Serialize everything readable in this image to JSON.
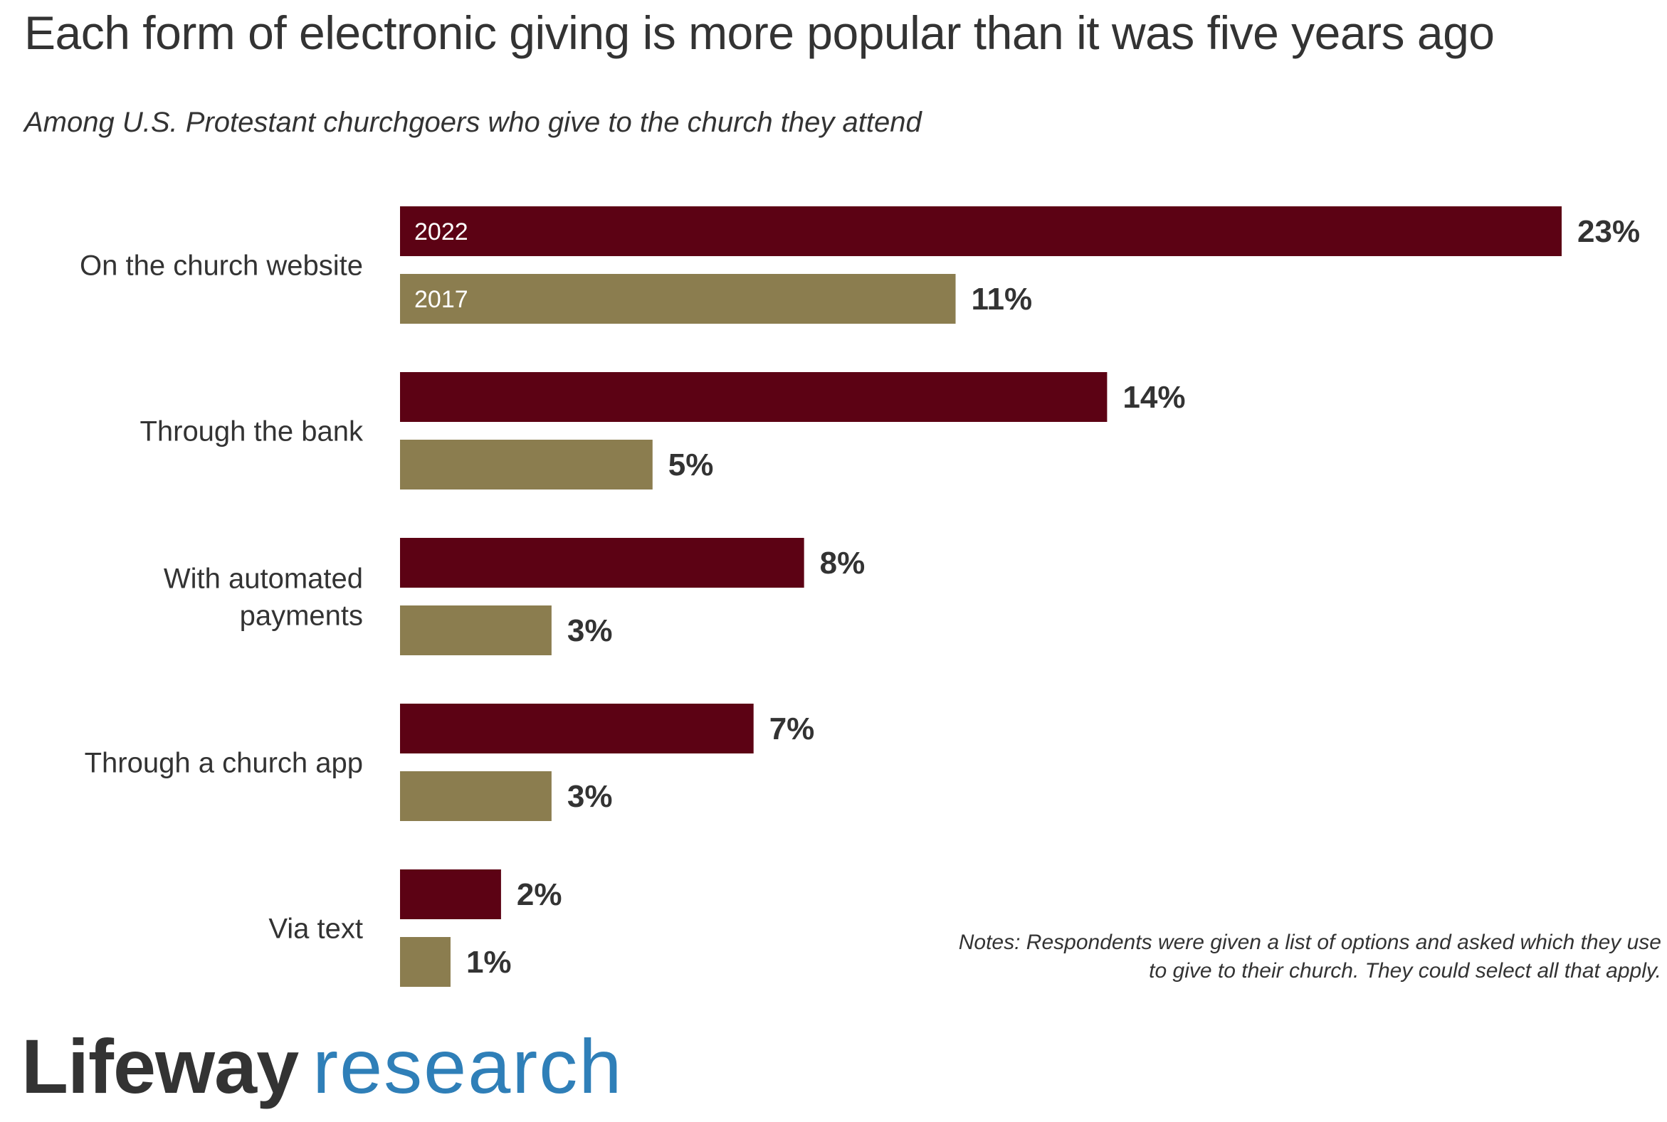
{
  "chart_data": {
    "type": "bar",
    "orientation": "horizontal",
    "title": "Each form of electronic giving is more popular than it was five years ago",
    "subtitle": "Among U.S. Protestant churchgoers who give to the church they attend",
    "categories": [
      "On the church website",
      "Through the bank",
      "With automated payments",
      "Through a church app",
      "Via text"
    ],
    "series": [
      {
        "name": "2022",
        "color": "#5c0214",
        "values": [
          23,
          14,
          8,
          7,
          2
        ]
      },
      {
        "name": "2017",
        "color": "#8b7d4f",
        "values": [
          11,
          5,
          3,
          3,
          1
        ]
      }
    ],
    "value_labels": {
      "2022": [
        "23%",
        "14%",
        "8%",
        "7%",
        "2%"
      ],
      "2017": [
        "11%",
        "5%",
        "3%",
        "3%",
        "1%"
      ]
    },
    "unit": "%",
    "xlim": [
      0,
      23
    ],
    "legend": "inside-first-bars",
    "grid": false
  },
  "notes": "Notes: Respondents were given a list of options and asked which they use to give to their church. They could select all that apply.",
  "logo": {
    "brand": "Lifeway",
    "research": "research",
    "brand_color": "#333333",
    "research_color": "#2f7fb8"
  }
}
